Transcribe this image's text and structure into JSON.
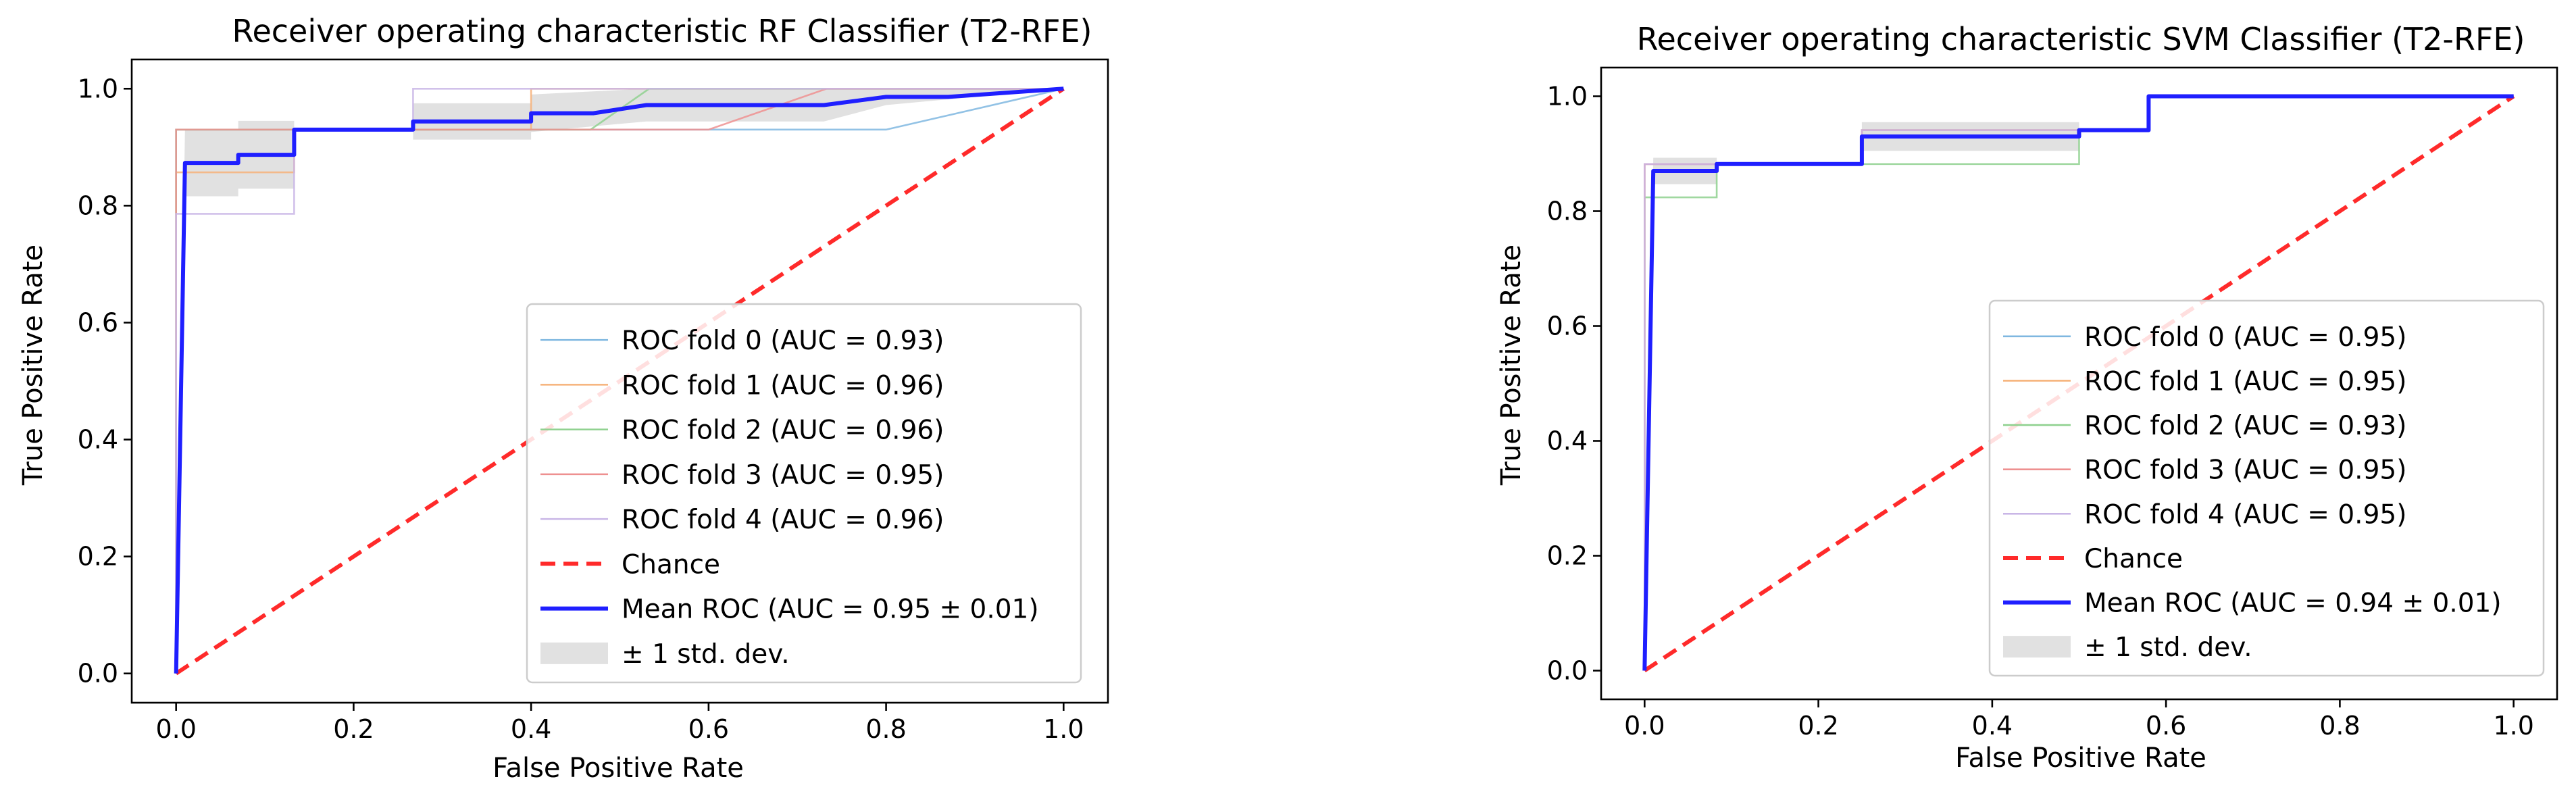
{
  "colors": {
    "fold0": "#7fb7e0",
    "fold1": "#f6b27a",
    "fold2": "#8fd18f",
    "fold3": "#ee9090",
    "fold4": "#c9b6e6",
    "chance": "#ff2a2a",
    "mean": "#1f1fff",
    "std_band": "#bdbdbd"
  },
  "chart_data": [
    {
      "type": "line",
      "title": "Receiver operating characteristic RF Classifier (T2-RFE)",
      "xlabel": "False Positive Rate",
      "ylabel": "True Positive Rate",
      "xlim": [
        -0.05,
        1.05
      ],
      "ylim": [
        -0.05,
        1.05
      ],
      "xticks": [
        "0.0",
        "0.2",
        "0.4",
        "0.6",
        "0.8",
        "1.0"
      ],
      "yticks": [
        "0.0",
        "0.2",
        "0.4",
        "0.6",
        "0.8",
        "1.0"
      ],
      "legend_position": "lower-right",
      "series": [
        {
          "name": "ROC fold 0 (AUC = 0.93)",
          "color_key": "fold0",
          "style": "thin",
          "x": [
            0,
            0,
            0.133,
            0.133,
            0.8,
            1.0
          ],
          "y": [
            0,
            0.93,
            0.93,
            0.93,
            0.93,
            1.0
          ]
        },
        {
          "name": "ROC fold 1 (AUC = 0.96)",
          "color_key": "fold1",
          "style": "thin",
          "x": [
            0,
            0,
            0.133,
            0.133,
            0.4,
            0.4,
            1.0
          ],
          "y": [
            0,
            0.857,
            0.857,
            0.93,
            0.93,
            1.0,
            1.0
          ]
        },
        {
          "name": "ROC fold 2 (AUC = 0.96)",
          "color_key": "fold2",
          "style": "thin",
          "x": [
            0,
            0,
            0.067,
            0.067,
            0.467,
            0.533,
            1.0
          ],
          "y": [
            0,
            0.93,
            0.93,
            0.93,
            0.93,
            1.0,
            1.0
          ]
        },
        {
          "name": "ROC fold 3 (AUC = 0.95)",
          "color_key": "fold3",
          "style": "thin",
          "x": [
            0,
            0,
            0.6,
            0.733,
            1.0
          ],
          "y": [
            0,
            0.93,
            0.93,
            1.0,
            1.0
          ]
        },
        {
          "name": "ROC fold 4 (AUC = 0.96)",
          "color_key": "fold4",
          "style": "thin",
          "x": [
            0,
            0,
            0.133,
            0.133,
            0.267,
            0.267,
            1.0
          ],
          "y": [
            0,
            0.786,
            0.786,
            0.93,
            0.93,
            1.0,
            1.0
          ]
        },
        {
          "name": "Chance",
          "color_key": "chance",
          "style": "dashed",
          "x": [
            0,
            1
          ],
          "y": [
            0,
            1
          ]
        },
        {
          "name": "Mean ROC (AUC = 0.95 ± 0.01)",
          "color_key": "mean",
          "style": "mean",
          "x": [
            0,
            0.01,
            0.01,
            0.07,
            0.07,
            0.133,
            0.133,
            0.267,
            0.267,
            0.4,
            0.4,
            0.47,
            0.53,
            0.73,
            0.8,
            0.87,
            1.0
          ],
          "y": [
            0,
            0.873,
            0.873,
            0.873,
            0.887,
            0.887,
            0.93,
            0.93,
            0.944,
            0.944,
            0.958,
            0.958,
            0.972,
            0.972,
            0.986,
            0.986,
            1.0
          ]
        },
        {
          "name": "± 1 std. dev.",
          "color_key": "std_band",
          "style": "band",
          "x": [
            0,
            0.01,
            0.07,
            0.07,
            0.133,
            0.133,
            0.267,
            0.267,
            0.4,
            0.4,
            0.53,
            0.73,
            0.8,
            1.0
          ],
          "upper": [
            0,
            0.93,
            0.93,
            0.945,
            0.945,
            0.93,
            0.93,
            0.975,
            0.975,
            0.99,
            1.0,
            1.0,
            1.0,
            1.0
          ],
          "lower": [
            0,
            0.816,
            0.816,
            0.829,
            0.829,
            0.93,
            0.93,
            0.913,
            0.913,
            0.926,
            0.944,
            0.944,
            0.972,
            1.0
          ]
        }
      ]
    },
    {
      "type": "line",
      "title": "Receiver operating characteristic SVM Classifier (T2-RFE)",
      "xlabel": "False Positive Rate",
      "ylabel": "True Positive Rate",
      "xlim": [
        -0.05,
        1.05
      ],
      "ylim": [
        -0.05,
        1.05
      ],
      "xticks": [
        "0.0",
        "0.2",
        "0.4",
        "0.6",
        "0.8",
        "1.0"
      ],
      "yticks": [
        "0.0",
        "0.2",
        "0.4",
        "0.6",
        "0.8",
        "1.0"
      ],
      "legend_position": "lower-right",
      "series": [
        {
          "name": "ROC fold 0 (AUC = 0.95)",
          "color_key": "fold0",
          "style": "thin",
          "x": [
            0,
            0,
            0.25,
            0.25,
            0.58,
            0.58,
            1.0
          ],
          "y": [
            0,
            0.882,
            0.882,
            0.941,
            0.941,
            1.0,
            1.0
          ]
        },
        {
          "name": "ROC fold 1 (AUC = 0.95)",
          "color_key": "fold1",
          "style": "thin",
          "x": [
            0,
            0,
            0.25,
            0.25,
            0.58,
            0.58,
            1.0
          ],
          "y": [
            0,
            0.882,
            0.882,
            0.941,
            0.941,
            1.0,
            1.0
          ]
        },
        {
          "name": "ROC fold 2 (AUC = 0.93)",
          "color_key": "fold2",
          "style": "thin",
          "x": [
            0,
            0,
            0.083,
            0.083,
            0.25,
            0.25,
            0.5,
            0.5,
            0.58,
            0.58,
            1.0
          ],
          "y": [
            0,
            0.824,
            0.824,
            0.882,
            0.882,
            0.882,
            0.882,
            0.941,
            0.941,
            1.0,
            1.0
          ]
        },
        {
          "name": "ROC fold 3 (AUC = 0.95)",
          "color_key": "fold3",
          "style": "thin",
          "x": [
            0,
            0,
            0.25,
            0.25,
            0.58,
            0.58,
            1.0
          ],
          "y": [
            0,
            0.882,
            0.882,
            0.941,
            0.941,
            1.0,
            1.0
          ]
        },
        {
          "name": "ROC fold 4 (AUC = 0.95)",
          "color_key": "fold4",
          "style": "thin",
          "x": [
            0,
            0,
            0.25,
            0.25,
            0.58,
            0.58,
            1.0
          ],
          "y": [
            0,
            0.882,
            0.882,
            0.941,
            0.941,
            1.0,
            1.0
          ]
        },
        {
          "name": "Chance",
          "color_key": "chance",
          "style": "dashed",
          "x": [
            0,
            1
          ],
          "y": [
            0,
            1
          ]
        },
        {
          "name": "Mean ROC (AUC = 0.94 ± 0.01)",
          "color_key": "mean",
          "style": "mean",
          "x": [
            0,
            0.01,
            0.01,
            0.083,
            0.083,
            0.25,
            0.25,
            0.5,
            0.5,
            0.58,
            0.58,
            1.0
          ],
          "y": [
            0,
            0.87,
            0.87,
            0.87,
            0.882,
            0.882,
            0.93,
            0.93,
            0.941,
            0.941,
            1.0,
            1.0
          ]
        },
        {
          "name": "± 1 std. dev.",
          "color_key": "std_band",
          "style": "band",
          "x": [
            0,
            0.01,
            0.083,
            0.083,
            0.25,
            0.25,
            0.5,
            0.5,
            0.58,
            0.58,
            1.0
          ],
          "upper": [
            0,
            0.893,
            0.893,
            0.882,
            0.882,
            0.955,
            0.955,
            0.941,
            0.941,
            1.0,
            1.0
          ],
          "lower": [
            0,
            0.847,
            0.847,
            0.882,
            0.882,
            0.905,
            0.905,
            0.941,
            0.941,
            1.0,
            1.0
          ]
        }
      ]
    }
  ]
}
